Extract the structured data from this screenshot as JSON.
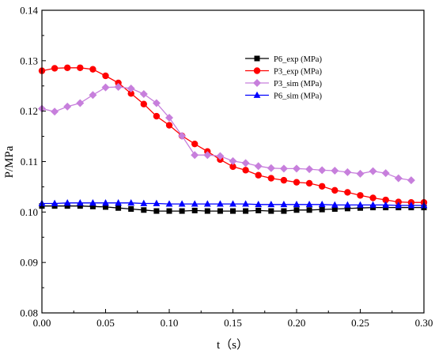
{
  "chart_data": {
    "type": "line",
    "xlabel": "t（s）",
    "ylabel": "P/MPa",
    "xlim": [
      0.0,
      0.3
    ],
    "ylim": [
      0.08,
      0.14
    ],
    "xticks": [
      "0.00",
      "0.05",
      "0.10",
      "0.15",
      "0.20",
      "0.25",
      "0.30"
    ],
    "yticks": [
      "0.08",
      "0.09",
      "0.10",
      "0.11",
      "0.12",
      "0.13",
      "0.14"
    ],
    "grid": false,
    "legend_position": "upper-right",
    "series": [
      {
        "name": "P6_exp (MPa)",
        "color": "#000000",
        "marker": "square",
        "x": [
          0.0,
          0.01,
          0.02,
          0.03,
          0.04,
          0.05,
          0.06,
          0.07,
          0.08,
          0.09,
          0.1,
          0.11,
          0.12,
          0.13,
          0.14,
          0.15,
          0.16,
          0.17,
          0.18,
          0.19,
          0.2,
          0.21,
          0.22,
          0.23,
          0.24,
          0.25,
          0.26,
          0.27,
          0.28,
          0.29,
          0.3
        ],
        "values": [
          0.1012,
          0.1012,
          0.1012,
          0.1012,
          0.1011,
          0.101,
          0.1008,
          0.1006,
          0.1004,
          0.1002,
          0.1002,
          0.1002,
          0.1003,
          0.1002,
          0.1002,
          0.1002,
          0.1002,
          0.1003,
          0.1002,
          0.1002,
          0.1004,
          0.1004,
          0.1005,
          0.1006,
          0.1007,
          0.1008,
          0.1009,
          0.1009,
          0.1009,
          0.1009,
          0.1009
        ]
      },
      {
        "name": "P3_exp (MPa)",
        "color": "#ff0000",
        "marker": "circle",
        "x": [
          0.0,
          0.01,
          0.02,
          0.03,
          0.04,
          0.05,
          0.06,
          0.07,
          0.08,
          0.09,
          0.1,
          0.11,
          0.12,
          0.13,
          0.14,
          0.15,
          0.16,
          0.17,
          0.18,
          0.19,
          0.2,
          0.21,
          0.22,
          0.23,
          0.24,
          0.25,
          0.26,
          0.27,
          0.28,
          0.29,
          0.3
        ],
        "values": [
          0.128,
          0.1285,
          0.1286,
          0.1286,
          0.1283,
          0.127,
          0.1256,
          0.1235,
          0.1214,
          0.119,
          0.1172,
          0.1151,
          0.1135,
          0.112,
          0.1104,
          0.109,
          0.1083,
          0.1073,
          0.1067,
          0.1063,
          0.1059,
          0.1057,
          0.1051,
          0.1043,
          0.1039,
          0.1033,
          0.1028,
          0.1024,
          0.102,
          0.1019,
          0.1019
        ]
      },
      {
        "name": "P3_sim (MPa)",
        "color": "#c77fdc",
        "marker": "diamond",
        "x": [
          0.0,
          0.01,
          0.02,
          0.03,
          0.04,
          0.05,
          0.06,
          0.07,
          0.08,
          0.09,
          0.1,
          0.11,
          0.12,
          0.13,
          0.14,
          0.15,
          0.16,
          0.17,
          0.18,
          0.19,
          0.2,
          0.21,
          0.22,
          0.23,
          0.24,
          0.25,
          0.26,
          0.27,
          0.28,
          0.29
        ],
        "values": [
          0.1205,
          0.1199,
          0.1209,
          0.1216,
          0.1232,
          0.1247,
          0.1248,
          0.1245,
          0.1234,
          0.1216,
          0.1187,
          0.1151,
          0.1113,
          0.1113,
          0.1111,
          0.1101,
          0.1097,
          0.1091,
          0.1087,
          0.1086,
          0.1086,
          0.1085,
          0.1083,
          0.1082,
          0.1079,
          0.1076,
          0.1081,
          0.1077,
          0.1067,
          0.1063
        ]
      },
      {
        "name": "P6_sim (MPa)",
        "color": "#0000ff",
        "marker": "triangle",
        "x": [
          0.0,
          0.01,
          0.02,
          0.03,
          0.04,
          0.05,
          0.06,
          0.07,
          0.08,
          0.09,
          0.1,
          0.11,
          0.12,
          0.13,
          0.14,
          0.15,
          0.16,
          0.17,
          0.18,
          0.19,
          0.2,
          0.21,
          0.22,
          0.23,
          0.24,
          0.25,
          0.26,
          0.27,
          0.28,
          0.29,
          0.3
        ],
        "values": [
          0.1017,
          0.1017,
          0.1018,
          0.1018,
          0.1018,
          0.1018,
          0.1018,
          0.1018,
          0.1017,
          0.1017,
          0.1016,
          0.1016,
          0.1016,
          0.1016,
          0.1016,
          0.1016,
          0.1016,
          0.1015,
          0.1015,
          0.1015,
          0.1015,
          0.1015,
          0.1015,
          0.1014,
          0.1014,
          0.1014,
          0.1014,
          0.1014,
          0.1013,
          0.1013,
          0.1013
        ]
      }
    ]
  }
}
